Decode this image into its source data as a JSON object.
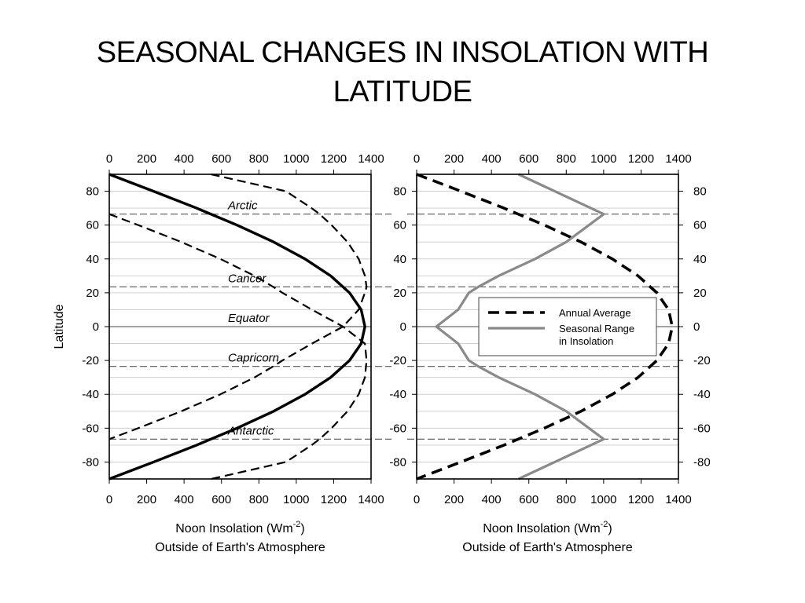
{
  "slide": {
    "title_line1": "SEASONAL CHANGES IN INSOLATION WITH",
    "title_line2": "LATITUDE"
  },
  "chart_data": [
    {
      "type": "line",
      "x_ticks": [
        0,
        200,
        400,
        600,
        800,
        1000,
        1200,
        1400
      ],
      "y_ticks": [
        80,
        60,
        40,
        20,
        0,
        -20,
        -40,
        -60,
        -80
      ],
      "xlim": [
        0,
        1400
      ],
      "ylim": [
        -90,
        90
      ],
      "xlabel": "Noon Insolation (Wm",
      "xlabel_sup": "-2",
      "xlabel_close": ")",
      "xlabel_line2": "Outside of Earth's Atmosphere",
      "ylabel": "Latitude",
      "grid": true,
      "reference_lines": [
        {
          "latitude": 66.5,
          "label": "Arctic"
        },
        {
          "latitude": 23.5,
          "label": "Cancer"
        },
        {
          "latitude": 0,
          "label": "Equator"
        },
        {
          "latitude": -23.5,
          "label": "Capricorn"
        },
        {
          "latitude": -66.5,
          "label": "Antarctic"
        }
      ],
      "series": [
        {
          "style": "solid",
          "y": [
            90,
            80,
            70,
            60,
            50,
            40,
            30,
            20,
            10,
            0,
            -10,
            -20,
            -30,
            -40,
            -50,
            -60,
            -70,
            -80,
            -90
          ],
          "x": [
            0,
            237,
            467,
            683,
            879,
            1047,
            1184,
            1285,
            1347,
            1367,
            1347,
            1285,
            1184,
            1047,
            879,
            683,
            467,
            237,
            0
          ]
        },
        {
          "style": "dashed",
          "y": [
            66.5,
            60,
            50,
            40,
            30,
            23.5,
            20,
            10,
            0,
            -10,
            -20,
            -30,
            -40,
            -50,
            -60,
            -66.5,
            -70,
            -80,
            -90
          ],
          "x": [
            0,
            155,
            385,
            594,
            777,
            876,
            926,
            1084,
            1250,
            1367,
            1376,
            1367,
            1334,
            1274,
            1189,
            1125,
            1082,
            945,
            545
          ]
        },
        {
          "style": "dashed",
          "y": [
            90,
            80,
            70,
            66.5,
            60,
            50,
            40,
            30,
            23.5,
            20,
            10,
            0,
            -10,
            -20,
            -23.5,
            -30,
            -40,
            -50,
            -60,
            -66.5
          ],
          "x": [
            545,
            945,
            1082,
            1125,
            1189,
            1274,
            1334,
            1367,
            1376,
            1367,
            1334,
            1250,
            1084,
            926,
            876,
            777,
            594,
            385,
            155,
            0
          ]
        }
      ]
    },
    {
      "type": "line",
      "x_ticks": [
        0,
        200,
        400,
        600,
        800,
        1000,
        1200,
        1400
      ],
      "y_ticks": [
        80,
        60,
        40,
        20,
        0,
        -20,
        -40,
        -60,
        -80
      ],
      "xlim": [
        0,
        1400
      ],
      "ylim": [
        -90,
        90
      ],
      "xlabel": "Noon Insolation (Wm",
      "xlabel_sup": "-2",
      "xlabel_close": ")",
      "xlabel_line2": "Outside of Earth's Atmosphere",
      "grid": true,
      "reference_lines": [
        {
          "latitude": 66.5
        },
        {
          "latitude": 23.5
        },
        {
          "latitude": -23.5
        },
        {
          "latitude": -66.5
        }
      ],
      "legend": {
        "placement": "center-right",
        "entries": [
          "Annual Average",
          "Seasonal Range",
          "in Insolation"
        ]
      },
      "series": [
        {
          "name": "Annual Average",
          "style": "dashed",
          "y": [
            90,
            80,
            70,
            60,
            50,
            40,
            30,
            20,
            10,
            0,
            -10,
            -20,
            -30,
            -40,
            -50,
            -60,
            -70,
            -80,
            -90
          ],
          "x": [
            0,
            237,
            467,
            683,
            879,
            1047,
            1184,
            1285,
            1347,
            1367,
            1347,
            1285,
            1184,
            1047,
            879,
            683,
            467,
            237,
            0
          ]
        },
        {
          "name": "Seasonal Range",
          "style": "solid-gray",
          "y": [
            90,
            66.5,
            50,
            40,
            30,
            23.5,
            20,
            10,
            0,
            -10,
            -20,
            -23.5,
            -30,
            -40,
            -50,
            -66.5,
            -90
          ],
          "x": [
            545,
            1000,
            800,
            633,
            439,
            330,
            279,
            222,
            105,
            222,
            279,
            330,
            439,
            633,
            800,
            1000,
            545
          ]
        }
      ],
      "right_ticks": [
        80,
        60,
        40,
        20,
        0,
        -20,
        -40,
        -60,
        -80
      ]
    }
  ],
  "colors": {
    "line": "#000000",
    "gray_series": "#8a8a8a",
    "grid": "#c8c8c8",
    "ref_line": "#555555"
  }
}
